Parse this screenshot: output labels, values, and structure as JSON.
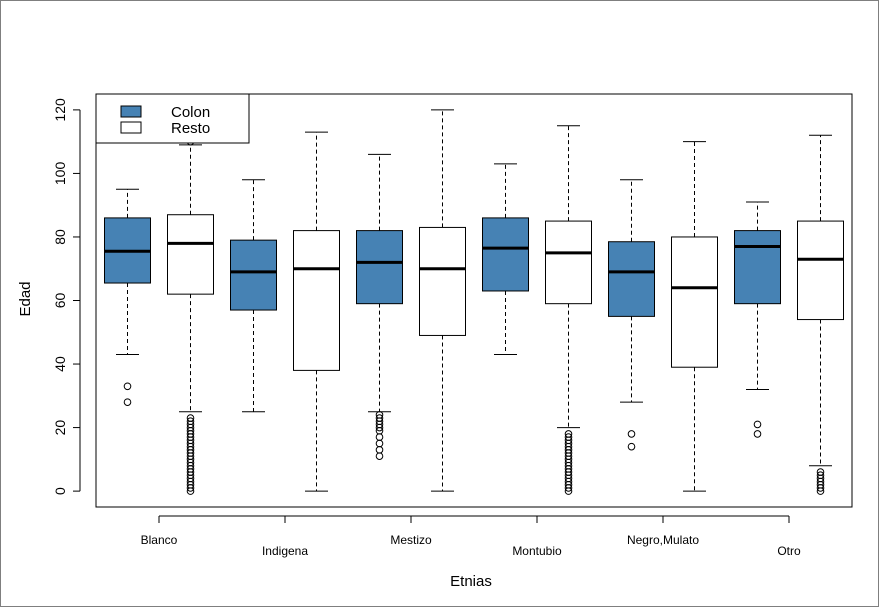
{
  "chart_data": {
    "type": "boxplot",
    "title": "",
    "xlabel": "Etnias",
    "ylabel": "Edad",
    "ylim": [
      -5,
      125
    ],
    "yticks": [
      0,
      20,
      40,
      60,
      80,
      100,
      120
    ],
    "grid": false,
    "legend": {
      "position": "top-left",
      "entries": [
        {
          "name": "Colon",
          "color": "#4682B4"
        },
        {
          "name": "Resto",
          "color": "#FFFFFF"
        }
      ]
    },
    "categories": [
      "Blanco",
      "Indigena",
      "Mestizo",
      "Montubio",
      "Negro,Mulato",
      "Otro"
    ],
    "series": [
      {
        "name": "Colon",
        "color": "#4682B4",
        "boxes": [
          {
            "whisker_low": 43,
            "q1": 65.5,
            "median": 75.5,
            "q3": 86,
            "whisker_high": 95,
            "outliers": [
              33,
              28
            ]
          },
          {
            "whisker_low": 25,
            "q1": 57,
            "median": 69,
            "q3": 79,
            "whisker_high": 98,
            "outliers": []
          },
          {
            "whisker_low": 25,
            "q1": 59,
            "median": 72,
            "q3": 82,
            "whisker_high": 106,
            "outliers": [
              24,
              23,
              22,
              21,
              20,
              19,
              17,
              15,
              13,
              11
            ]
          },
          {
            "whisker_low": 43,
            "q1": 63,
            "median": 76.5,
            "q3": 86,
            "whisker_high": 103,
            "outliers": []
          },
          {
            "whisker_low": 28,
            "q1": 55,
            "median": 69,
            "q3": 78.5,
            "whisker_high": 98,
            "outliers": [
              18,
              14
            ]
          },
          {
            "whisker_low": 32,
            "q1": 59,
            "median": 77,
            "q3": 82,
            "whisker_high": 91,
            "outliers": [
              21,
              18
            ]
          }
        ]
      },
      {
        "name": "Resto",
        "color": "#FFFFFF",
        "boxes": [
          {
            "whisker_low": 25,
            "q1": 62,
            "median": 78,
            "q3": 87,
            "whisker_high": 109,
            "outliers": [
              23,
              22,
              21,
              20,
              19,
              18,
              17,
              16,
              15,
              14,
              13,
              12,
              11,
              10,
              9,
              8,
              7,
              6,
              5,
              4,
              3,
              2,
              1,
              0,
              110
            ]
          },
          {
            "whisker_low": 0,
            "q1": 38,
            "median": 70,
            "q3": 82,
            "whisker_high": 113,
            "outliers": []
          },
          {
            "whisker_low": 0,
            "q1": 49,
            "median": 70,
            "q3": 83,
            "whisker_high": 120,
            "outliers": []
          },
          {
            "whisker_low": 20,
            "q1": 59,
            "median": 75,
            "q3": 85,
            "whisker_high": 115,
            "outliers": [
              18,
              17,
              16,
              15,
              14,
              13,
              12,
              11,
              10,
              9,
              8,
              7,
              6,
              5,
              4,
              3,
              2,
              1,
              0
            ]
          },
          {
            "whisker_low": 0,
            "q1": 39,
            "median": 64,
            "q3": 80,
            "whisker_high": 110,
            "outliers": []
          },
          {
            "whisker_low": 8,
            "q1": 54,
            "median": 73,
            "q3": 85,
            "whisker_high": 112,
            "outliers": [
              6,
              5,
              4,
              3,
              2,
              1,
              0
            ]
          }
        ]
      }
    ]
  }
}
